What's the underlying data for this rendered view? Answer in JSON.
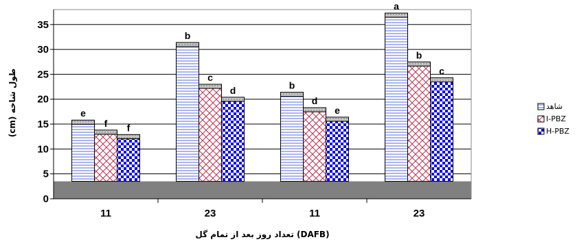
{
  "chart_data": {
    "type": "bar",
    "title": "",
    "xlabel": "تعداد روز بعد از تمام گل (DAFB)",
    "ylabel": "طول شاخه (cm)",
    "ylim": [
      0,
      38
    ],
    "yticks": [
      0,
      5,
      10,
      15,
      20,
      25,
      30,
      35
    ],
    "grid": true,
    "legend_position": "right",
    "categories": [
      "11",
      "23",
      "11",
      "23"
    ],
    "series": [
      {
        "name": "شاهد",
        "values": [
          15.8,
          31.4,
          21.4,
          37.3
        ],
        "letters": [
          "e",
          "b",
          "b",
          "a"
        ],
        "color": "#aab4ee"
      },
      {
        "name": "I-PBZ",
        "values": [
          13.8,
          23.0,
          18.3,
          27.5
        ],
        "letters": [
          "f",
          "c",
          "d",
          "b"
        ],
        "color": "#c0304e"
      },
      {
        "name": "H-PBZ",
        "values": [
          12.9,
          20.4,
          16.4,
          24.3
        ],
        "letters": [
          "f",
          "d",
          "e",
          "c"
        ],
        "color": "#0000ee"
      }
    ]
  }
}
